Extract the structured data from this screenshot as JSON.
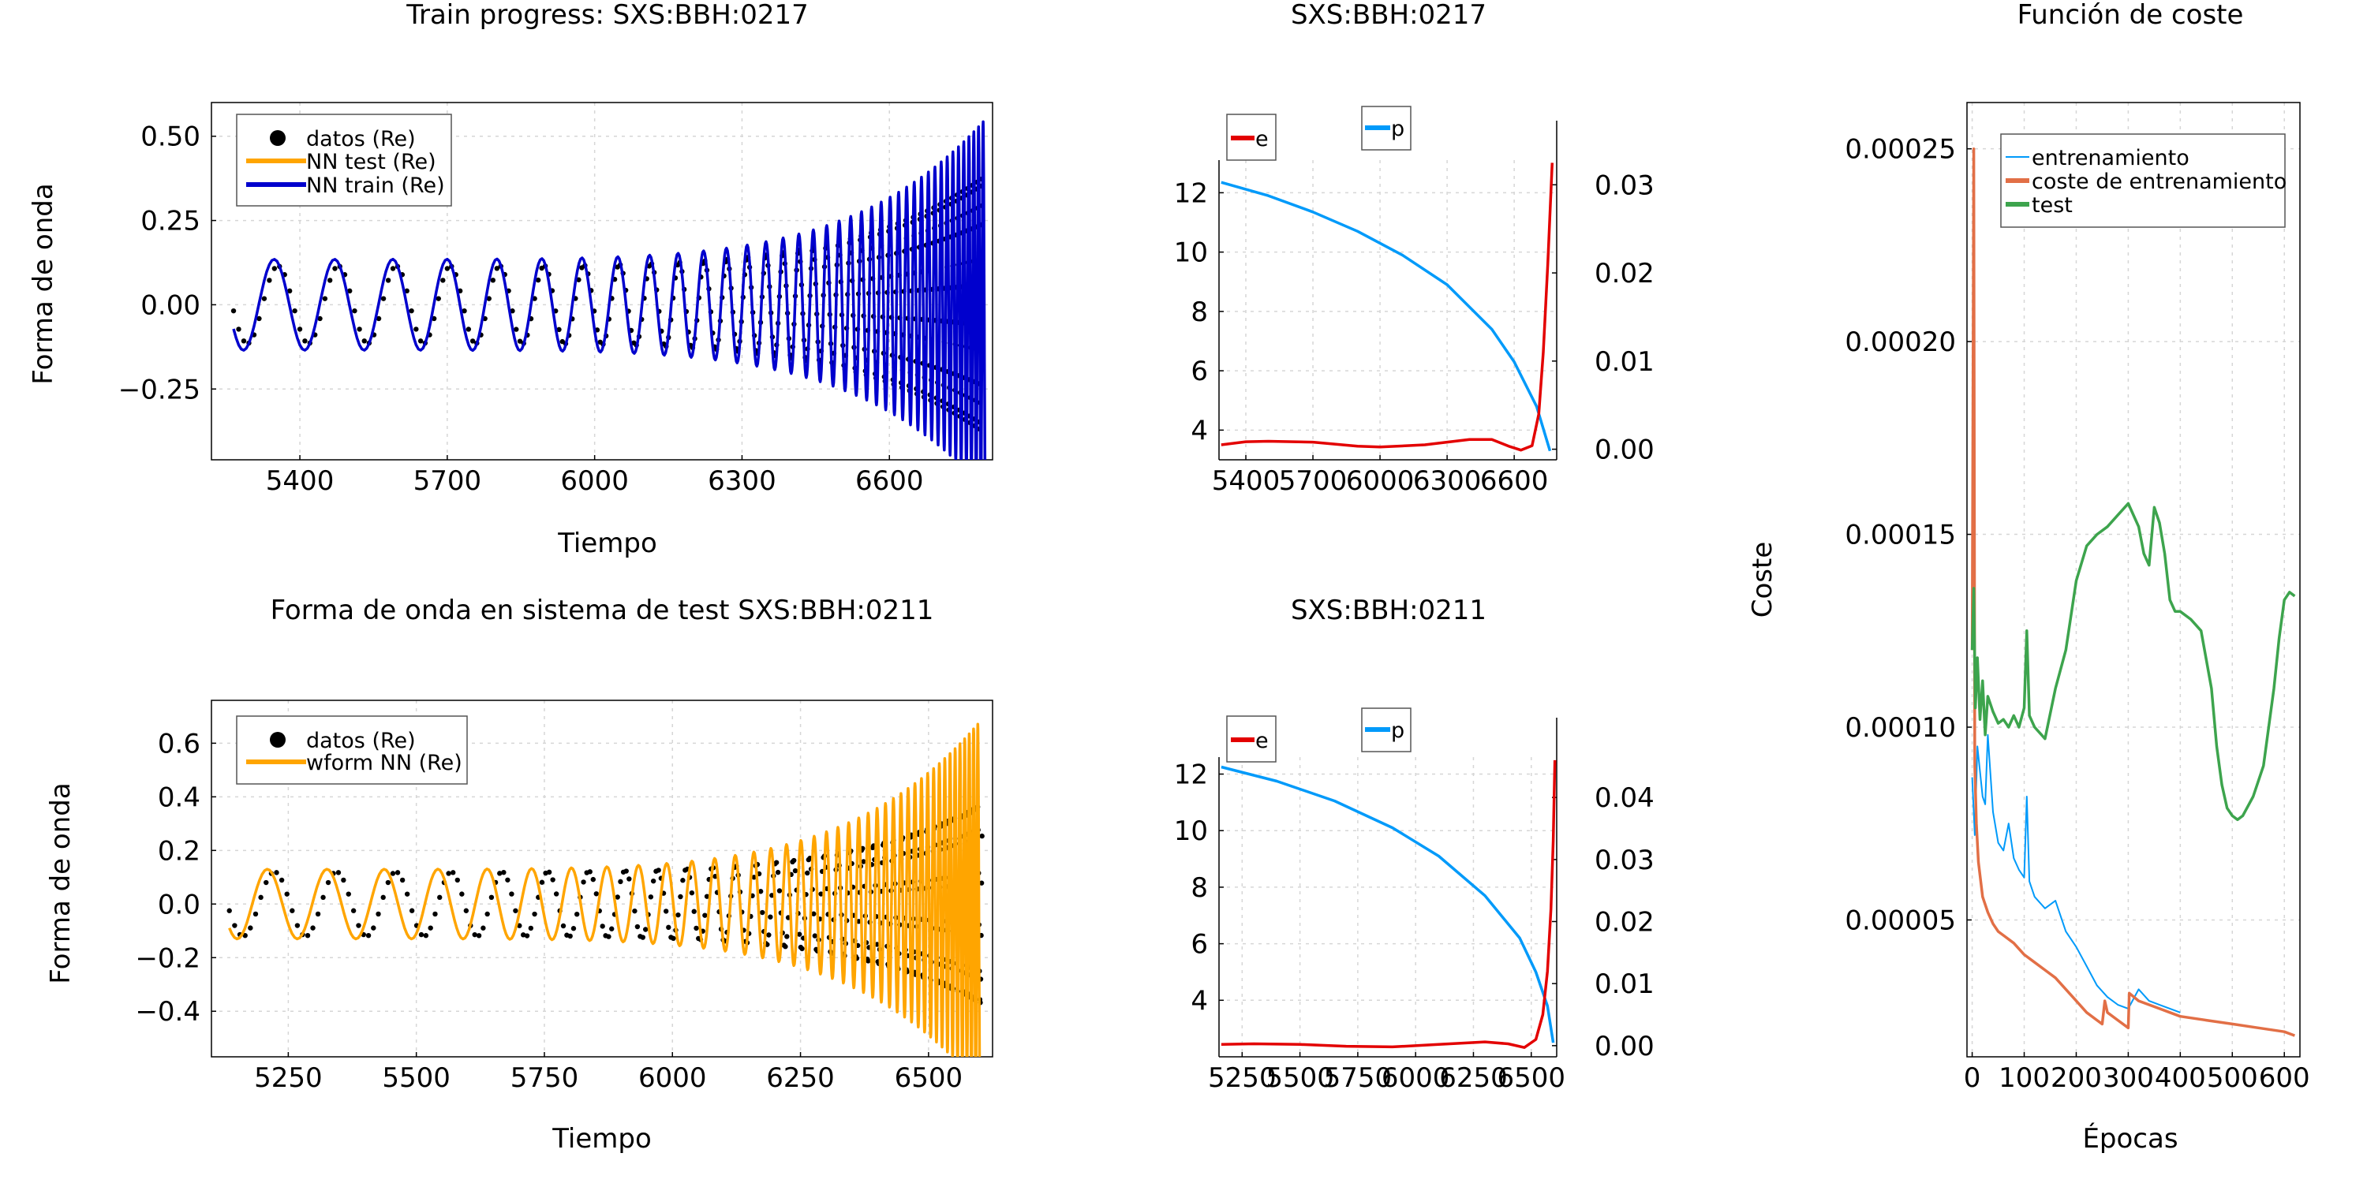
{
  "figure": {
    "background": "#ffffff"
  },
  "chart_data": [
    {
      "id": "p1",
      "type": "line",
      "title": "Train progress: SXS:BBH:0217",
      "xlabel": "Tiempo",
      "ylabel": "Forma de onda",
      "xlim": [
        5220,
        6810
      ],
      "ylim": [
        -0.46,
        0.6
      ],
      "xticks": [
        5400,
        5700,
        6000,
        6300,
        6600
      ],
      "xtick_labels": [
        "5400",
        "5700",
        "6000",
        "6300",
        "6600"
      ],
      "yticks": [
        -0.25,
        0.0,
        0.25,
        0.5
      ],
      "ytick_labels": [
        "−0.25",
        "0.00",
        "0.25",
        "0.50"
      ],
      "grid": true,
      "legend_position": "top-left",
      "legend": [
        "datos (Re)",
        "NN test (Re)",
        "NN train (Re)"
      ],
      "series": [
        {
          "name": "datos (Re)",
          "style": "dots",
          "color": "#000000",
          "wave": {
            "t0": 5265,
            "t1": 6790,
            "T0": 125,
            "T1": 9,
            "amp0": 0.115,
            "amp1": 0.38,
            "phase": 3.3
          }
        },
        {
          "name": "NN test (Re)",
          "style": "line",
          "color": "#FFA500",
          "visible": false
        },
        {
          "name": "NN train (Re)",
          "style": "line",
          "color": "#0000CD",
          "wave": {
            "t0": 5265,
            "t1": 6795,
            "T0": 125,
            "T1": 9,
            "amp0": 0.135,
            "amp1": 0.55,
            "phase": 3.7
          }
        }
      ]
    },
    {
      "id": "p2",
      "type": "line",
      "title": "SXS:BBH:0217",
      "xlim": [
        5280,
        6790
      ],
      "ylim": [
        3.0,
        13.1
      ],
      "xticks": [
        5400,
        5700,
        6000,
        6300,
        6600
      ],
      "xtick_labels": [
        "5400",
        "5700",
        "6000",
        "6300",
        "6600"
      ],
      "yticks": [
        4,
        6,
        8,
        10,
        12
      ],
      "ytick_labels": [
        "4",
        "6",
        "8",
        "10",
        "12"
      ],
      "y2lim": [
        -0.0012,
        0.0328
      ],
      "y2ticks": [
        0.0,
        0.01,
        0.02,
        0.03
      ],
      "y2tick_labels": [
        "0.00",
        "0.01",
        "0.02",
        "0.03"
      ],
      "grid": true,
      "legend_left": "e",
      "legend_right": "p",
      "series": [
        {
          "name": "p",
          "axis": "left",
          "color": "#009AFA",
          "x": [
            5290,
            5500,
            5700,
            5900,
            6100,
            6300,
            6500,
            6600,
            6700,
            6760
          ],
          "y": [
            12.35,
            11.9,
            11.35,
            10.7,
            9.9,
            8.9,
            7.4,
            6.3,
            4.8,
            3.3
          ]
        },
        {
          "name": "e",
          "axis": "right",
          "color": "#E30000",
          "x": [
            5290,
            5400,
            5500,
            5700,
            5900,
            6000,
            6200,
            6400,
            6500,
            6580,
            6630,
            6680,
            6710,
            6730,
            6750,
            6770
          ],
          "y": [
            0.0005,
            0.00085,
            0.0009,
            0.0008,
            0.00035,
            0.00025,
            0.0005,
            0.0011,
            0.0011,
            0.0003,
            -0.0001,
            0.0004,
            0.004,
            0.011,
            0.021,
            0.0325
          ]
        }
      ]
    },
    {
      "id": "p3",
      "type": "line",
      "title": "Función de coste",
      "xlabel": "Épocas",
      "ylabel": "Coste",
      "xlim": [
        -10,
        630
      ],
      "ylim": [
        1.45e-05,
        0.000262
      ],
      "xticks": [
        0,
        100,
        200,
        300,
        400,
        500,
        600
      ],
      "xtick_labels": [
        "0",
        "100",
        "200",
        "300",
        "400",
        "500",
        "600"
      ],
      "yticks": [
        5e-05,
        0.0001,
        0.00015,
        0.0002,
        0.00025
      ],
      "ytick_labels": [
        "0.00005",
        "0.00010",
        "0.00015",
        "0.00020",
        "0.00025"
      ],
      "grid": true,
      "legend_position": "top-right",
      "legend": [
        "entrenamiento",
        "coste de entrenamiento",
        "test"
      ],
      "series": [
        {
          "name": "entrenamiento",
          "color": "#009AFA",
          "x": [
            0,
            5,
            10,
            20,
            25,
            30,
            40,
            50,
            60,
            70,
            80,
            90,
            100,
            105,
            110,
            120,
            140,
            160,
            180,
            200,
            220,
            240,
            260,
            280,
            300,
            320,
            340,
            360,
            380,
            400
          ],
          "y": [
            8.7e-05,
            7.2e-05,
            9.5e-05,
            8.2e-05,
            8e-05,
            9.8e-05,
            7.8e-05,
            7e-05,
            6.8e-05,
            7.5e-05,
            6.6e-05,
            6.3e-05,
            6.1e-05,
            8.2e-05,
            6e-05,
            5.6e-05,
            5.3e-05,
            5.5e-05,
            4.7e-05,
            4.3e-05,
            3.8e-05,
            3.3e-05,
            3e-05,
            2.8e-05,
            2.7e-05,
            3.2e-05,
            2.9e-05,
            2.8e-05,
            2.7e-05,
            2.6e-05
          ]
        },
        {
          "name": "coste de entrenamiento",
          "color": "#E26F46",
          "x": [
            0,
            3,
            5,
            8,
            12,
            20,
            30,
            40,
            50,
            60,
            80,
            100,
            120,
            140,
            160,
            180,
            200,
            220,
            240,
            250,
            255,
            260,
            280,
            300,
            302,
            320,
            340,
            360,
            380,
            400,
            450,
            500,
            550,
            600,
            620
          ],
          "y": [
            0.00012,
            0.00025,
            9e-05,
            7.5e-05,
            6.5e-05,
            5.6e-05,
            5.2e-05,
            4.9e-05,
            4.7e-05,
            4.6e-05,
            4.4e-05,
            4.1e-05,
            3.9e-05,
            3.7e-05,
            3.5e-05,
            3.2e-05,
            2.9e-05,
            2.6e-05,
            2.4e-05,
            2.3e-05,
            2.9e-05,
            2.6e-05,
            2.4e-05,
            2.2e-05,
            3.1e-05,
            2.9e-05,
            2.8e-05,
            2.7e-05,
            2.6e-05,
            2.5e-05,
            2.4e-05,
            2.3e-05,
            2.2e-05,
            2.1e-05,
            2e-05
          ]
        },
        {
          "name": "test",
          "color": "#3DA44D",
          "x": [
            0,
            3,
            6,
            10,
            15,
            20,
            25,
            30,
            40,
            50,
            60,
            70,
            80,
            90,
            100,
            105,
            110,
            120,
            140,
            160,
            180,
            200,
            220,
            240,
            260,
            280,
            300,
            310,
            320,
            330,
            340,
            350,
            360,
            370,
            380,
            390,
            400,
            420,
            440,
            460,
            470,
            480,
            490,
            500,
            510,
            520,
            540,
            560,
            580,
            590,
            600,
            610,
            620
          ],
          "y": [
            0.00012,
            0.000136,
            0.000105,
            0.000118,
            0.000102,
            0.000112,
            9.8e-05,
            0.000108,
            0.000104,
            0.000101,
            0.000102,
            0.0001,
            0.000103,
            0.0001,
            0.000105,
            0.000125,
            0.000103,
            0.0001,
            9.7e-05,
            0.00011,
            0.00012,
            0.000138,
            0.000147,
            0.00015,
            0.000152,
            0.000155,
            0.000158,
            0.000155,
            0.000152,
            0.000145,
            0.000142,
            0.000157,
            0.000153,
            0.000145,
            0.000133,
            0.00013,
            0.00013,
            0.000128,
            0.000125,
            0.00011,
            9.5e-05,
            8.5e-05,
            7.9e-05,
            7.7e-05,
            7.6e-05,
            7.7e-05,
            8.2e-05,
            9e-05,
            0.00011,
            0.000123,
            0.000133,
            0.000135,
            0.000134
          ]
        }
      ]
    },
    {
      "id": "p4",
      "type": "line",
      "title": "Forma de onda en sistema de test SXS:BBH:0211",
      "xlabel": "Tiempo",
      "ylabel": "Forma de onda",
      "xlim": [
        5100,
        6625
      ],
      "ylim": [
        -0.57,
        0.76
      ],
      "xticks": [
        5250,
        5500,
        5750,
        6000,
        6250,
        6500
      ],
      "xtick_labels": [
        "5250",
        "5500",
        "5750",
        "6000",
        "6250",
        "6500"
      ],
      "yticks": [
        -0.4,
        -0.2,
        0.0,
        0.2,
        0.4,
        0.6
      ],
      "ytick_labels": [
        "−0.4",
        "−0.2",
        "0.0",
        "0.2",
        "0.4",
        "0.6"
      ],
      "grid": true,
      "legend_position": "top-left",
      "legend": [
        "datos (Re)",
        "wform NN (Re)"
      ],
      "series": [
        {
          "name": "datos (Re)",
          "style": "dots",
          "color": "#000000",
          "wave": {
            "t0": 5135,
            "t1": 6605,
            "T0": 123,
            "T1": 10,
            "amp0": 0.12,
            "amp1": 0.38,
            "phase": 3.35
          }
        },
        {
          "name": "wform NN (Re)",
          "style": "line",
          "color": "#FFA500",
          "wave": {
            "t0": 5135,
            "t1": 6600,
            "T0": 118,
            "T1": 8,
            "amp0": 0.13,
            "amp1": 0.68,
            "phase": 3.9
          }
        }
      ]
    },
    {
      "id": "p5",
      "type": "line",
      "title": "SXS:BBH:0211",
      "xlim": [
        5150,
        6610
      ],
      "ylim": [
        2.0,
        12.6
      ],
      "xticks": [
        5250,
        5500,
        5750,
        6000,
        6250,
        6500
      ],
      "xtick_labels": [
        "5250",
        "5500",
        "5750",
        "6000",
        "6250",
        "6500"
      ],
      "yticks": [
        4,
        6,
        8,
        10,
        12
      ],
      "ytick_labels": [
        "4",
        "6",
        "8",
        "10",
        "12"
      ],
      "y2lim": [
        -0.0018,
        0.0465
      ],
      "y2ticks": [
        0.0,
        0.01,
        0.02,
        0.03,
        0.04
      ],
      "y2tick_labels": [
        "0.00",
        "0.01",
        "0.02",
        "0.03",
        "0.04"
      ],
      "grid": true,
      "legend_left": "e",
      "legend_right": "p",
      "series": [
        {
          "name": "p",
          "axis": "left",
          "color": "#009AFA",
          "x": [
            5160,
            5400,
            5650,
            5900,
            6100,
            6300,
            6450,
            6520,
            6570,
            6595
          ],
          "y": [
            12.25,
            11.75,
            11.05,
            10.1,
            9.1,
            7.7,
            6.2,
            5.0,
            3.8,
            2.5
          ]
        },
        {
          "name": "e",
          "axis": "right",
          "color": "#E30000",
          "x": [
            5160,
            5300,
            5500,
            5700,
            5900,
            6100,
            6300,
            6400,
            6470,
            6520,
            6550,
            6570,
            6585,
            6595,
            6602
          ],
          "y": [
            0.0002,
            0.0003,
            0.0002,
            -0.0001,
            -0.0002,
            0.0002,
            0.0006,
            0.0003,
            -0.0003,
            0.001,
            0.005,
            0.012,
            0.022,
            0.033,
            0.046
          ]
        }
      ]
    }
  ]
}
